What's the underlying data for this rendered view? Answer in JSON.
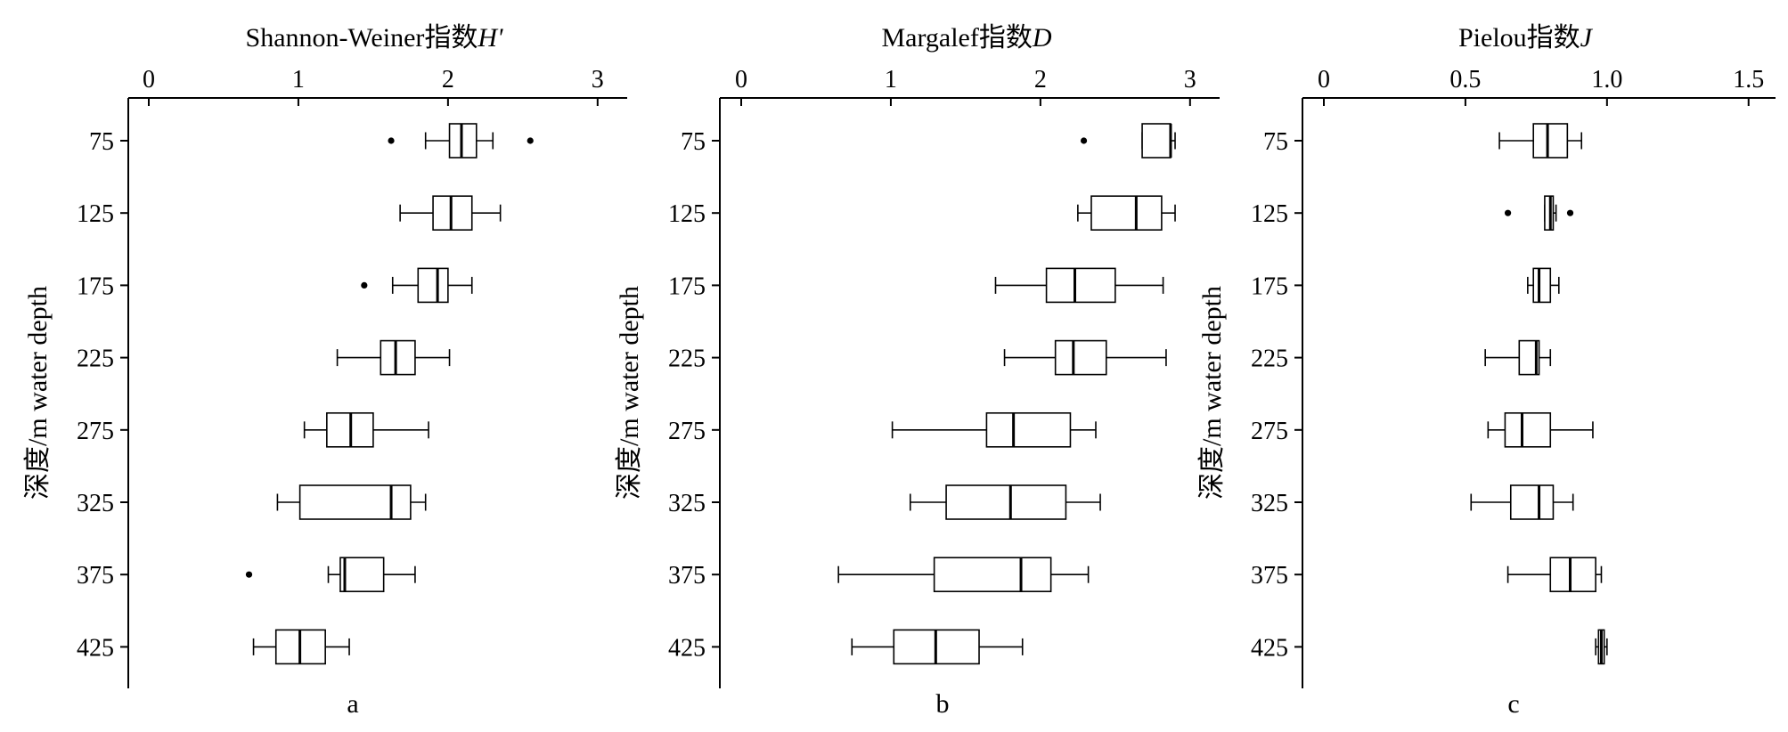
{
  "chart_data": [
    {
      "type": "boxplot",
      "panel_label": "a",
      "title": "Shannon-Weiner指数H'",
      "title_parts": {
        "text": "Shannon-Weiner指数",
        "italic": "H'"
      },
      "ylabel": "深度/m water depth",
      "xlim": [
        0,
        3.15
      ],
      "x_ticks": [
        "0",
        "1",
        "2",
        "3"
      ],
      "categories": [
        "75",
        "125",
        "175",
        "225",
        "275",
        "325",
        "375",
        "425"
      ],
      "boxes": [
        {
          "min": 1.85,
          "q1": 2.01,
          "median": 2.09,
          "q3": 2.19,
          "max": 2.3,
          "outliers": [
            1.62,
            2.55
          ]
        },
        {
          "min": 1.68,
          "q1": 1.9,
          "median": 2.02,
          "q3": 2.16,
          "max": 2.35,
          "outliers": []
        },
        {
          "min": 1.63,
          "q1": 1.8,
          "median": 1.93,
          "q3": 2.0,
          "max": 2.16,
          "outliers": [
            1.44
          ]
        },
        {
          "min": 1.26,
          "q1": 1.55,
          "median": 1.65,
          "q3": 1.78,
          "max": 2.01,
          "outliers": []
        },
        {
          "min": 1.04,
          "q1": 1.19,
          "median": 1.35,
          "q3": 1.5,
          "max": 1.87,
          "outliers": []
        },
        {
          "min": 0.86,
          "q1": 1.01,
          "median": 1.62,
          "q3": 1.75,
          "max": 1.85,
          "outliers": []
        },
        {
          "min": 1.2,
          "q1": 1.28,
          "median": 1.31,
          "q3": 1.57,
          "max": 1.78,
          "outliers": [
            0.67
          ]
        },
        {
          "min": 0.7,
          "q1": 0.85,
          "median": 1.01,
          "q3": 1.18,
          "max": 1.34,
          "outliers": []
        }
      ]
    },
    {
      "type": "boxplot",
      "panel_label": "b",
      "title": "Margalef指数D",
      "title_parts": {
        "text": "Margalef指数",
        "italic": "D"
      },
      "ylabel": "深度/m water depth",
      "xlim": [
        0,
        3.15
      ],
      "x_ticks": [
        "0",
        "1",
        "2",
        "3"
      ],
      "categories": [
        "75",
        "125",
        "175",
        "225",
        "275",
        "325",
        "375",
        "425"
      ],
      "boxes": [
        {
          "min": 2.68,
          "q1": 2.68,
          "median": 2.87,
          "q3": 2.87,
          "max": 2.9,
          "outliers": [
            2.29
          ]
        },
        {
          "min": 2.25,
          "q1": 2.34,
          "median": 2.64,
          "q3": 2.81,
          "max": 2.9,
          "outliers": []
        },
        {
          "min": 1.7,
          "q1": 2.04,
          "median": 2.23,
          "q3": 2.5,
          "max": 2.82,
          "outliers": []
        },
        {
          "min": 1.76,
          "q1": 2.1,
          "median": 2.22,
          "q3": 2.44,
          "max": 2.84,
          "outliers": []
        },
        {
          "min": 1.01,
          "q1": 1.64,
          "median": 1.82,
          "q3": 2.2,
          "max": 2.37,
          "outliers": []
        },
        {
          "min": 1.13,
          "q1": 1.37,
          "median": 1.8,
          "q3": 2.17,
          "max": 2.4,
          "outliers": []
        },
        {
          "min": 0.65,
          "q1": 1.29,
          "median": 1.87,
          "q3": 2.07,
          "max": 2.32,
          "outliers": []
        },
        {
          "min": 0.74,
          "q1": 1.02,
          "median": 1.3,
          "q3": 1.59,
          "max": 1.88,
          "outliers": []
        }
      ]
    },
    {
      "type": "boxplot",
      "panel_label": "c",
      "title": "Pielou指数J",
      "title_parts": {
        "text": "Pielou指数",
        "italic": "J"
      },
      "ylabel": "深度/m water depth",
      "xlim": [
        0,
        1.57
      ],
      "x_ticks": [
        "0",
        "0.5",
        "1.0",
        "1.5"
      ],
      "categories": [
        "75",
        "125",
        "175",
        "225",
        "275",
        "325",
        "375",
        "425"
      ],
      "boxes": [
        {
          "min": 0.62,
          "q1": 0.74,
          "median": 0.79,
          "q3": 0.86,
          "max": 0.91,
          "outliers": []
        },
        {
          "min": 0.78,
          "q1": 0.78,
          "median": 0.8,
          "q3": 0.81,
          "max": 0.82,
          "outliers": [
            0.65,
            0.87
          ]
        },
        {
          "min": 0.72,
          "q1": 0.74,
          "median": 0.76,
          "q3": 0.8,
          "max": 0.83,
          "outliers": []
        },
        {
          "min": 0.57,
          "q1": 0.69,
          "median": 0.75,
          "q3": 0.76,
          "max": 0.8,
          "outliers": []
        },
        {
          "min": 0.58,
          "q1": 0.64,
          "median": 0.7,
          "q3": 0.8,
          "max": 0.95,
          "outliers": []
        },
        {
          "min": 0.52,
          "q1": 0.66,
          "median": 0.76,
          "q3": 0.81,
          "max": 0.88,
          "outliers": []
        },
        {
          "min": 0.65,
          "q1": 0.8,
          "median": 0.87,
          "q3": 0.96,
          "max": 0.98,
          "outliers": []
        },
        {
          "min": 0.96,
          "q1": 0.97,
          "median": 0.98,
          "q3": 0.99,
          "max": 1.0,
          "outliers": []
        }
      ]
    }
  ]
}
